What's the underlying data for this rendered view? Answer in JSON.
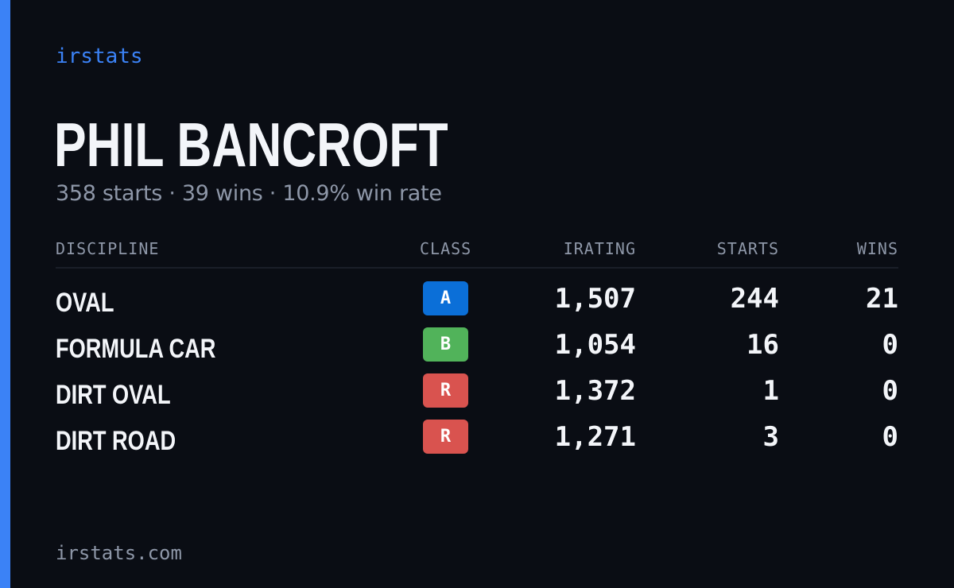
{
  "brand": "irstats",
  "driver": {
    "name": "PHIL BANCROFT",
    "summary": "358 starts · 39 wins · 10.9% win rate"
  },
  "table": {
    "headers": {
      "discipline": "DISCIPLINE",
      "class": "CLASS",
      "irating": "IRATING",
      "starts": "STARTS",
      "wins": "WINS"
    },
    "rows": [
      {
        "discipline": "OVAL",
        "class": "A",
        "class_color": "#0b6fd8",
        "irating": "1,507",
        "starts": "244",
        "wins": "21"
      },
      {
        "discipline": "FORMULA CAR",
        "class": "B",
        "class_color": "#51b35a",
        "irating": "1,054",
        "starts": "16",
        "wins": "0"
      },
      {
        "discipline": "DIRT OVAL",
        "class": "R",
        "class_color": "#d9534f",
        "irating": "1,372",
        "starts": "1",
        "wins": "0"
      },
      {
        "discipline": "DIRT ROAD",
        "class": "R",
        "class_color": "#d9534f",
        "irating": "1,271",
        "starts": "3",
        "wins": "0"
      }
    ]
  },
  "footer": "irstats.com",
  "colors": {
    "background": "#0a0d14",
    "accent": "#3b82f6",
    "text": "#f3f5f9",
    "muted": "#8e97a8"
  }
}
